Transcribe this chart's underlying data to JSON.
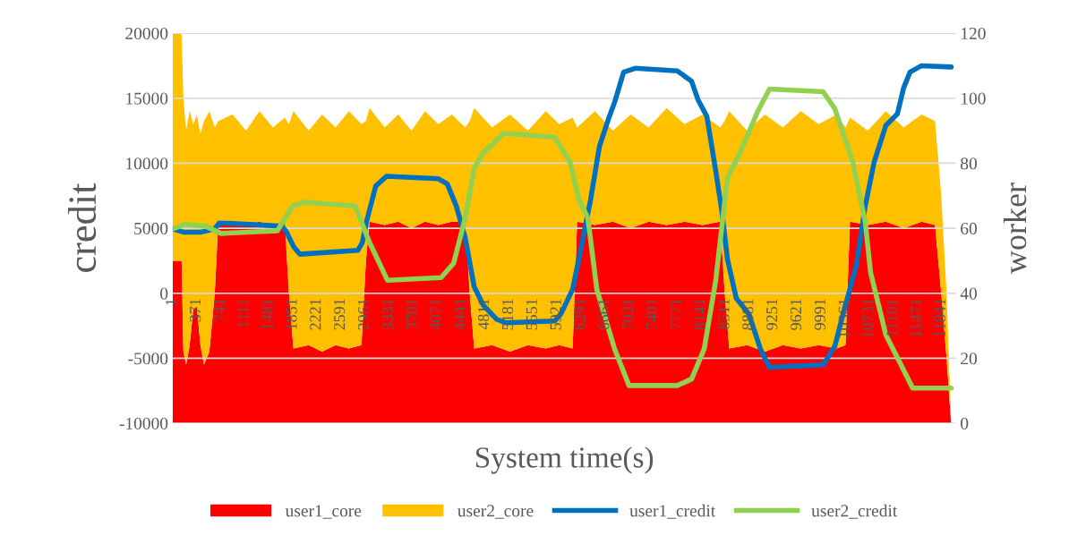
{
  "chart_data": {
    "type": "line",
    "xlabel": "System time(s)",
    "ylabel": "credit",
    "y2label": "worker",
    "xlim": [
      1,
      12060
    ],
    "xticks": [
      1,
      371,
      741,
      1111,
      1481,
      1851,
      2221,
      2591,
      2961,
      3331,
      3701,
      4071,
      4441,
      4811,
      5181,
      5551,
      5921,
      6291,
      6661,
      7031,
      7401,
      7771,
      8141,
      8511,
      8881,
      9251,
      9621,
      9991,
      10361,
      10731,
      11101,
      11471,
      11841
    ],
    "ylim": [
      -10000,
      20000
    ],
    "yticks": [
      -10000,
      -5000,
      0,
      5000,
      10000,
      15000,
      20000
    ],
    "y2lim": [
      0,
      120
    ],
    "y2ticks": [
      0,
      20,
      40,
      60,
      80,
      100,
      120
    ],
    "stacked": true,
    "grid": "y",
    "legend": "bottom",
    "series": [
      {
        "name": "user1_core",
        "type": "area",
        "axis": "y2",
        "color": "#ff0000",
        "x": [
          1,
          139,
          166,
          208,
          263,
          318,
          373,
          428,
          483,
          566,
          649,
          704,
          924,
          1131,
          1338,
          1545,
          1726,
          1792,
          1861,
          2096,
          2302,
          2509,
          2716,
          2909,
          2977,
          3033,
          3267,
          3474,
          3680,
          3887,
          4094,
          4300,
          4507,
          4576,
          4645,
          4920,
          5196,
          5472,
          5747,
          5954,
          6161,
          6230,
          6505,
          6781,
          7056,
          7332,
          7608,
          7883,
          8159,
          8434,
          8503,
          8572,
          8848,
          9123,
          9399,
          9674,
          9950,
          10226,
          10363,
          10432,
          10708,
          10983,
          11259,
          11535,
          11742,
          11838,
          11920,
          11990
        ],
        "values": [
          50,
          50,
          22,
          18,
          24,
          35,
          36,
          24,
          18,
          22,
          40,
          62,
          62,
          61,
          62,
          61,
          62,
          40,
          23,
          24,
          22,
          24,
          23,
          24,
          50,
          62,
          61,
          62,
          60,
          62,
          61,
          62,
          62,
          40,
          23,
          24,
          22,
          24,
          23,
          24,
          23,
          62,
          61,
          62,
          60,
          62,
          61,
          62,
          61,
          62,
          40,
          23,
          24,
          22,
          24,
          23,
          24,
          23,
          24,
          62,
          61,
          62,
          60,
          62,
          61,
          40,
          20,
          0
        ]
      },
      {
        "name": "user2_core",
        "type": "area",
        "axis": "y2",
        "color": "#ffc000",
        "x": [
          1,
          139,
          166,
          208,
          263,
          318,
          373,
          428,
          483,
          566,
          649,
          704,
          924,
          1131,
          1338,
          1545,
          1726,
          1792,
          1861,
          2096,
          2302,
          2509,
          2716,
          2909,
          2977,
          3033,
          3267,
          3474,
          3680,
          3887,
          4094,
          4300,
          4507,
          4576,
          4645,
          4920,
          5196,
          5472,
          5747,
          5954,
          6161,
          6230,
          6505,
          6781,
          7056,
          7332,
          7608,
          7883,
          8159,
          8434,
          8503,
          8572,
          8848,
          9123,
          9399,
          9674,
          9950,
          10226,
          10363,
          10432,
          10708,
          10983,
          11259,
          11535,
          11742,
          11838,
          11920,
          11990
        ],
        "values": [
          70,
          70,
          78,
          72,
          72,
          57,
          59,
          65,
          75,
          74,
          51,
          31,
          33,
          29,
          34,
          30,
          32,
          52,
          73,
          66,
          73,
          67,
          73,
          68,
          43,
          35,
          30,
          33,
          30,
          34,
          31,
          33,
          29,
          53,
          74,
          67,
          73,
          66,
          73,
          68,
          71,
          29,
          35,
          28,
          35,
          29,
          36,
          30,
          34,
          29,
          53,
          73,
          66,
          73,
          67,
          73,
          68,
          72,
          67,
          32,
          29,
          34,
          31,
          33,
          32,
          30,
          20,
          0
        ]
      },
      {
        "name": "user1_credit",
        "color": "#0070c0",
        "x": [
          1,
          166,
          442,
          649,
          718,
          1200,
          1682,
          1751,
          1861,
          1958,
          2853,
          2922,
          2991,
          3129,
          3294,
          4094,
          4231,
          4369,
          4507,
          4645,
          4783,
          4989,
          5127,
          5885,
          5982,
          6161,
          6299,
          6436,
          6574,
          6712,
          6808,
          6946,
          7125,
          7773,
          7993,
          8090,
          8228,
          8365,
          8462,
          8545,
          8682,
          8875,
          9054,
          9192,
          10019,
          10198,
          10336,
          10529,
          10667,
          10805,
          10984,
          11163,
          11259,
          11356,
          11535,
          11990
        ],
        "values": [
          4950,
          4700,
          4700,
          4950,
          5400,
          5300,
          5150,
          4750,
          3600,
          3000,
          3300,
          3900,
          5600,
          8250,
          9000,
          8800,
          8400,
          6700,
          4250,
          500,
          -900,
          -2000,
          -2270,
          -2130,
          -1580,
          300,
          3700,
          7150,
          11300,
          13400,
          14700,
          17000,
          17300,
          17100,
          16300,
          14900,
          13600,
          9400,
          6200,
          2600,
          -400,
          -1600,
          -4300,
          -5700,
          -5500,
          -4100,
          -1400,
          2100,
          6700,
          10100,
          12900,
          13800,
          15800,
          17000,
          17500,
          17400
        ]
      },
      {
        "name": "user2_credit",
        "color": "#92d050",
        "x": [
          1,
          194,
          511,
          745,
          1613,
          1848,
          2027,
          2812,
          3033,
          3308,
          4135,
          4328,
          4507,
          4645,
          4783,
          5100,
          5885,
          6119,
          6257,
          6395,
          6533,
          6808,
          7029,
          7773,
          7993,
          8186,
          8365,
          8545,
          8738,
          9013,
          9192,
          10019,
          10198,
          10474,
          10667,
          10749,
          10984,
          11218,
          11397,
          11990
        ],
        "values": [
          4950,
          5300,
          5150,
          4600,
          4800,
          6700,
          7000,
          6700,
          3900,
          1000,
          1200,
          2300,
          5800,
          9600,
          10800,
          12300,
          12000,
          10100,
          7200,
          5800,
          300,
          -4300,
          -7100,
          -7100,
          -6600,
          -4300,
          1000,
          8900,
          10800,
          14000,
          15700,
          15500,
          14200,
          10100,
          5500,
          1600,
          -3200,
          -5500,
          -7300,
          -7300
        ]
      }
    ]
  }
}
